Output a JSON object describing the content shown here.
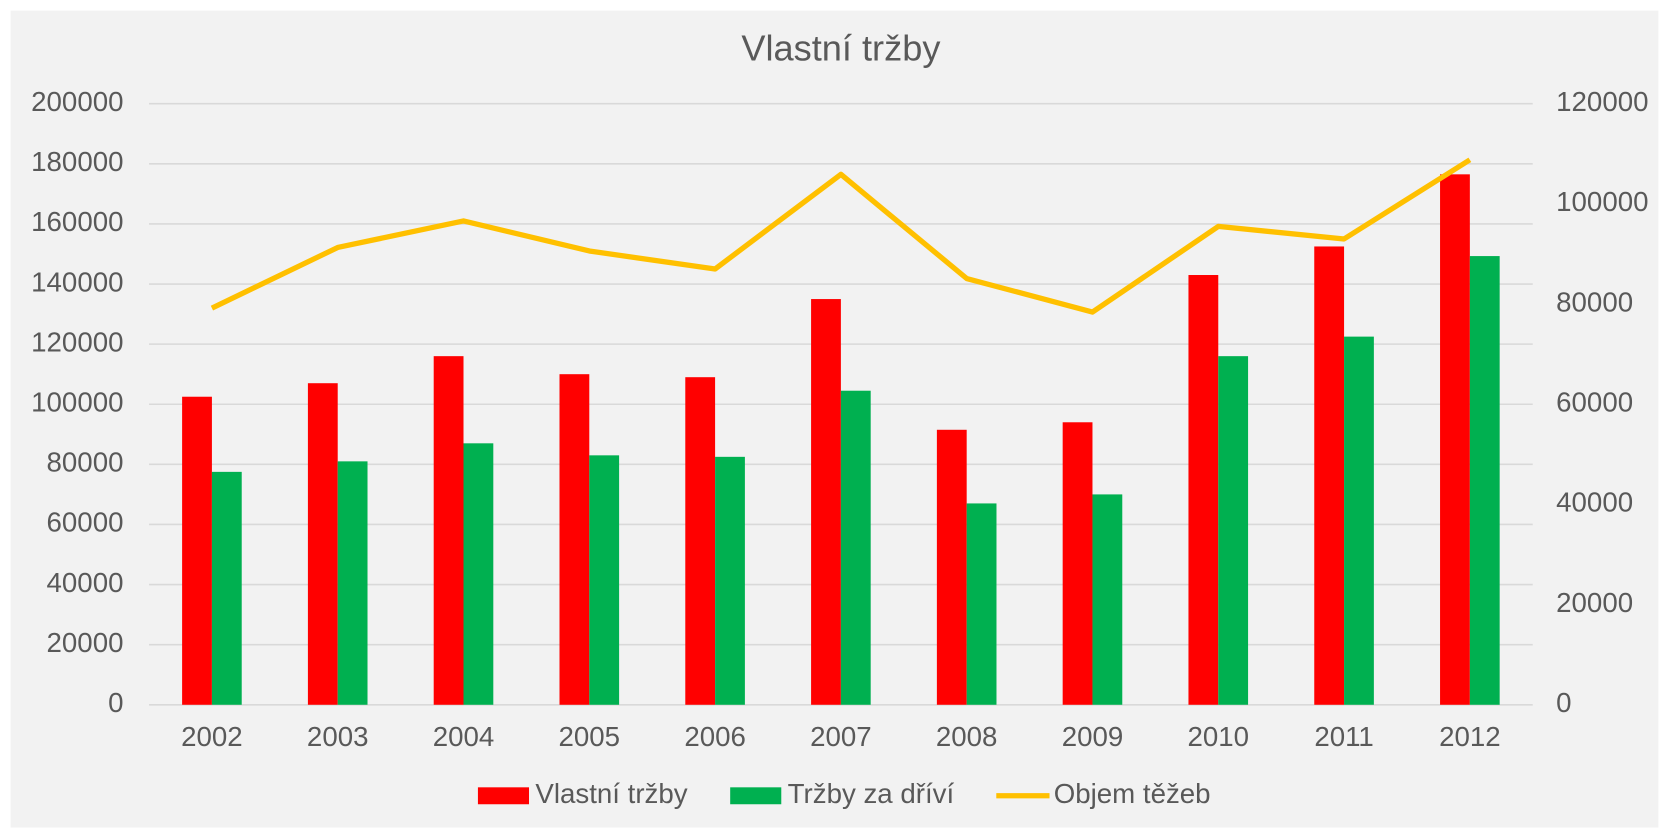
{
  "chart_data": {
    "type": "bar_line",
    "title": "Vlastní tržby",
    "categories": [
      "2002",
      "2003",
      "2004",
      "2005",
      "2006",
      "2007",
      "2008",
      "2009",
      "2010",
      "2011",
      "2012"
    ],
    "series": [
      {
        "name": "Vlastní tržby",
        "color": "#ff0000",
        "type": "bar",
        "values": [
          102500,
          107000,
          116000,
          110000,
          109000,
          135000,
          91500,
          94000,
          143000,
          152500,
          176500
        ]
      },
      {
        "name": "Tržby za dříví",
        "color": "#00b050",
        "type": "bar",
        "values": [
          77500,
          81000,
          87000,
          83000,
          82500,
          104500,
          67000,
          70000,
          116000,
          122500,
          149300
        ]
      },
      {
        "name": "Objem těžeb",
        "color": "#ffc000",
        "type": "line",
        "axis": "y2",
        "values": [
          79200,
          91300,
          96600,
          90600,
          87000,
          105900,
          85100,
          78400,
          95500,
          93000,
          108800
        ]
      }
    ],
    "ylim": [
      0,
      200000
    ],
    "yticks": [
      0,
      20000,
      40000,
      60000,
      80000,
      100000,
      120000,
      140000,
      160000,
      180000,
      200000
    ],
    "y2lim": [
      0,
      120000
    ],
    "y2ticks": [
      0,
      20000,
      40000,
      60000,
      80000,
      100000,
      120000
    ],
    "grid": true,
    "legend": "bottom"
  }
}
